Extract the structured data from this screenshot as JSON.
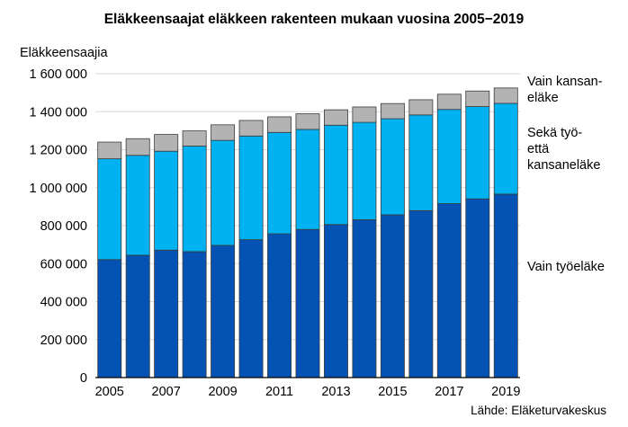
{
  "chart_data": {
    "type": "bar",
    "stacked": true,
    "title": "Eläkkeensaajat eläkkeen rakenteen mukaan vuosina 2005−2019",
    "ylabel": "Eläkkeensaajia",
    "source": "Lähde: Eläketurvakeskus",
    "ylim": [
      0,
      1600000
    ],
    "yticks": [
      0,
      200000,
      400000,
      600000,
      800000,
      1000000,
      1200000,
      1400000,
      1600000
    ],
    "ytick_labels": [
      "0",
      "200 000",
      "400 000",
      "600 000",
      "800 000",
      "1 000 000",
      "1 200 000",
      "1 400 000",
      "1 600 000"
    ],
    "grid": true,
    "legend_placement": "right",
    "categories": [
      "2005",
      "2006",
      "2007",
      "2008",
      "2009",
      "2010",
      "2011",
      "2012",
      "2013",
      "2014",
      "2015",
      "2016",
      "2017",
      "2018",
      "2019"
    ],
    "xtick_labels": [
      "2005",
      "",
      "2007",
      "",
      "2009",
      "",
      "2011",
      "",
      "2013",
      "",
      "2015",
      "",
      "2017",
      "",
      "2019"
    ],
    "series": [
      {
        "name": "Vain työeläke",
        "label_lines": [
          "Vain työeläke"
        ],
        "color": "#0453b4",
        "values": [
          621000,
          644000,
          671000,
          663000,
          696000,
          726000,
          757000,
          780000,
          806000,
          831000,
          857000,
          879000,
          916000,
          941000,
          966000
        ]
      },
      {
        "name": "Sekä työ- että kansaneläke",
        "label_lines": [
          "Sekä työ-",
          "että",
          "kansaneläke"
        ],
        "color": "#00b2f2",
        "values": [
          531000,
          526000,
          521000,
          556000,
          553000,
          546000,
          534000,
          527000,
          523000,
          513000,
          506000,
          504000,
          496000,
          486000,
          478000
        ]
      },
      {
        "name": "Vain kansaneläke",
        "label_lines": [
          "Vain kansan-",
          "eläke"
        ],
        "color": "#b3b3b3",
        "values": [
          88000,
          88000,
          88000,
          80000,
          82000,
          82000,
          82000,
          82000,
          81000,
          81000,
          80000,
          80000,
          80000,
          82000,
          81000
        ]
      }
    ]
  }
}
